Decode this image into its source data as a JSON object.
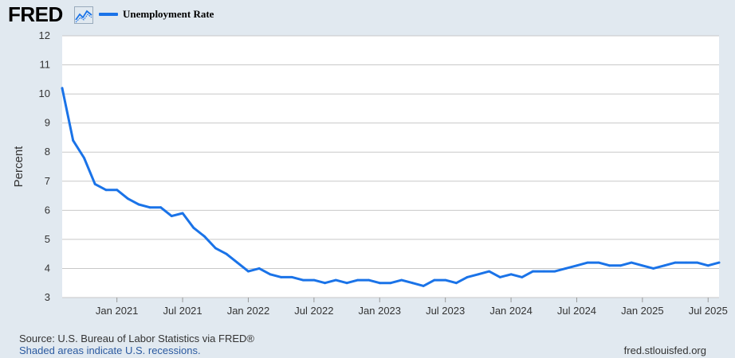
{
  "header": {
    "logo": "FRED",
    "series_label": "Unemployment Rate",
    "series_color": "#1a73e8"
  },
  "footer": {
    "source": "Source: U.S. Bureau of Labor Statistics via FRED®",
    "recession_note": "Shaded areas indicate U.S. recessions.",
    "site": "fred.stlouisfed.org"
  },
  "chart_data": {
    "type": "line",
    "ylabel": "Percent",
    "ylim": [
      3,
      12
    ],
    "yticks": [
      3,
      4,
      5,
      6,
      7,
      8,
      9,
      10,
      11,
      12
    ],
    "xlim": [
      "2020-08",
      "2025-08"
    ],
    "xticks": [
      {
        "date": "2021-01",
        "label": "Jan 2021"
      },
      {
        "date": "2021-07",
        "label": "Jul 2021"
      },
      {
        "date": "2022-01",
        "label": "Jan 2022"
      },
      {
        "date": "2022-07",
        "label": "Jul 2022"
      },
      {
        "date": "2023-01",
        "label": "Jan 2023"
      },
      {
        "date": "2023-07",
        "label": "Jul 2023"
      },
      {
        "date": "2024-01",
        "label": "Jan 2024"
      },
      {
        "date": "2024-07",
        "label": "Jul 2024"
      },
      {
        "date": "2025-01",
        "label": "Jan 2025"
      },
      {
        "date": "2025-07",
        "label": "Jul 2025"
      }
    ],
    "grid": true,
    "series": [
      {
        "name": "Unemployment Rate",
        "color": "#1a73e8",
        "x": [
          "2020-08",
          "2020-09",
          "2020-10",
          "2020-11",
          "2020-12",
          "2021-01",
          "2021-02",
          "2021-03",
          "2021-04",
          "2021-05",
          "2021-06",
          "2021-07",
          "2021-08",
          "2021-09",
          "2021-10",
          "2021-11",
          "2021-12",
          "2022-01",
          "2022-02",
          "2022-03",
          "2022-04",
          "2022-05",
          "2022-06",
          "2022-07",
          "2022-08",
          "2022-09",
          "2022-10",
          "2022-11",
          "2022-12",
          "2023-01",
          "2023-02",
          "2023-03",
          "2023-04",
          "2023-05",
          "2023-06",
          "2023-07",
          "2023-08",
          "2023-09",
          "2023-10",
          "2023-11",
          "2023-12",
          "2024-01",
          "2024-02",
          "2024-03",
          "2024-04",
          "2024-05",
          "2024-06",
          "2024-07",
          "2024-08",
          "2024-09",
          "2024-10",
          "2024-11",
          "2024-12",
          "2025-01",
          "2025-02",
          "2025-03",
          "2025-04",
          "2025-05",
          "2025-06",
          "2025-07",
          "2025-08"
        ],
        "values": [
          10.2,
          8.4,
          7.8,
          6.9,
          6.7,
          6.7,
          6.4,
          6.2,
          6.1,
          6.1,
          5.8,
          5.9,
          5.4,
          5.1,
          4.7,
          4.5,
          4.2,
          3.9,
          4.0,
          3.8,
          3.7,
          3.7,
          3.6,
          3.6,
          3.5,
          3.6,
          3.5,
          3.6,
          3.6,
          3.5,
          3.5,
          3.6,
          3.5,
          3.4,
          3.6,
          3.6,
          3.5,
          3.7,
          3.8,
          3.9,
          3.7,
          3.8,
          3.7,
          3.9,
          3.9,
          3.9,
          4.0,
          4.1,
          4.2,
          4.2,
          4.1,
          4.1,
          4.2,
          4.1,
          4.0,
          4.1,
          4.2,
          4.2,
          4.2,
          4.1,
          4.2
        ]
      }
    ]
  }
}
